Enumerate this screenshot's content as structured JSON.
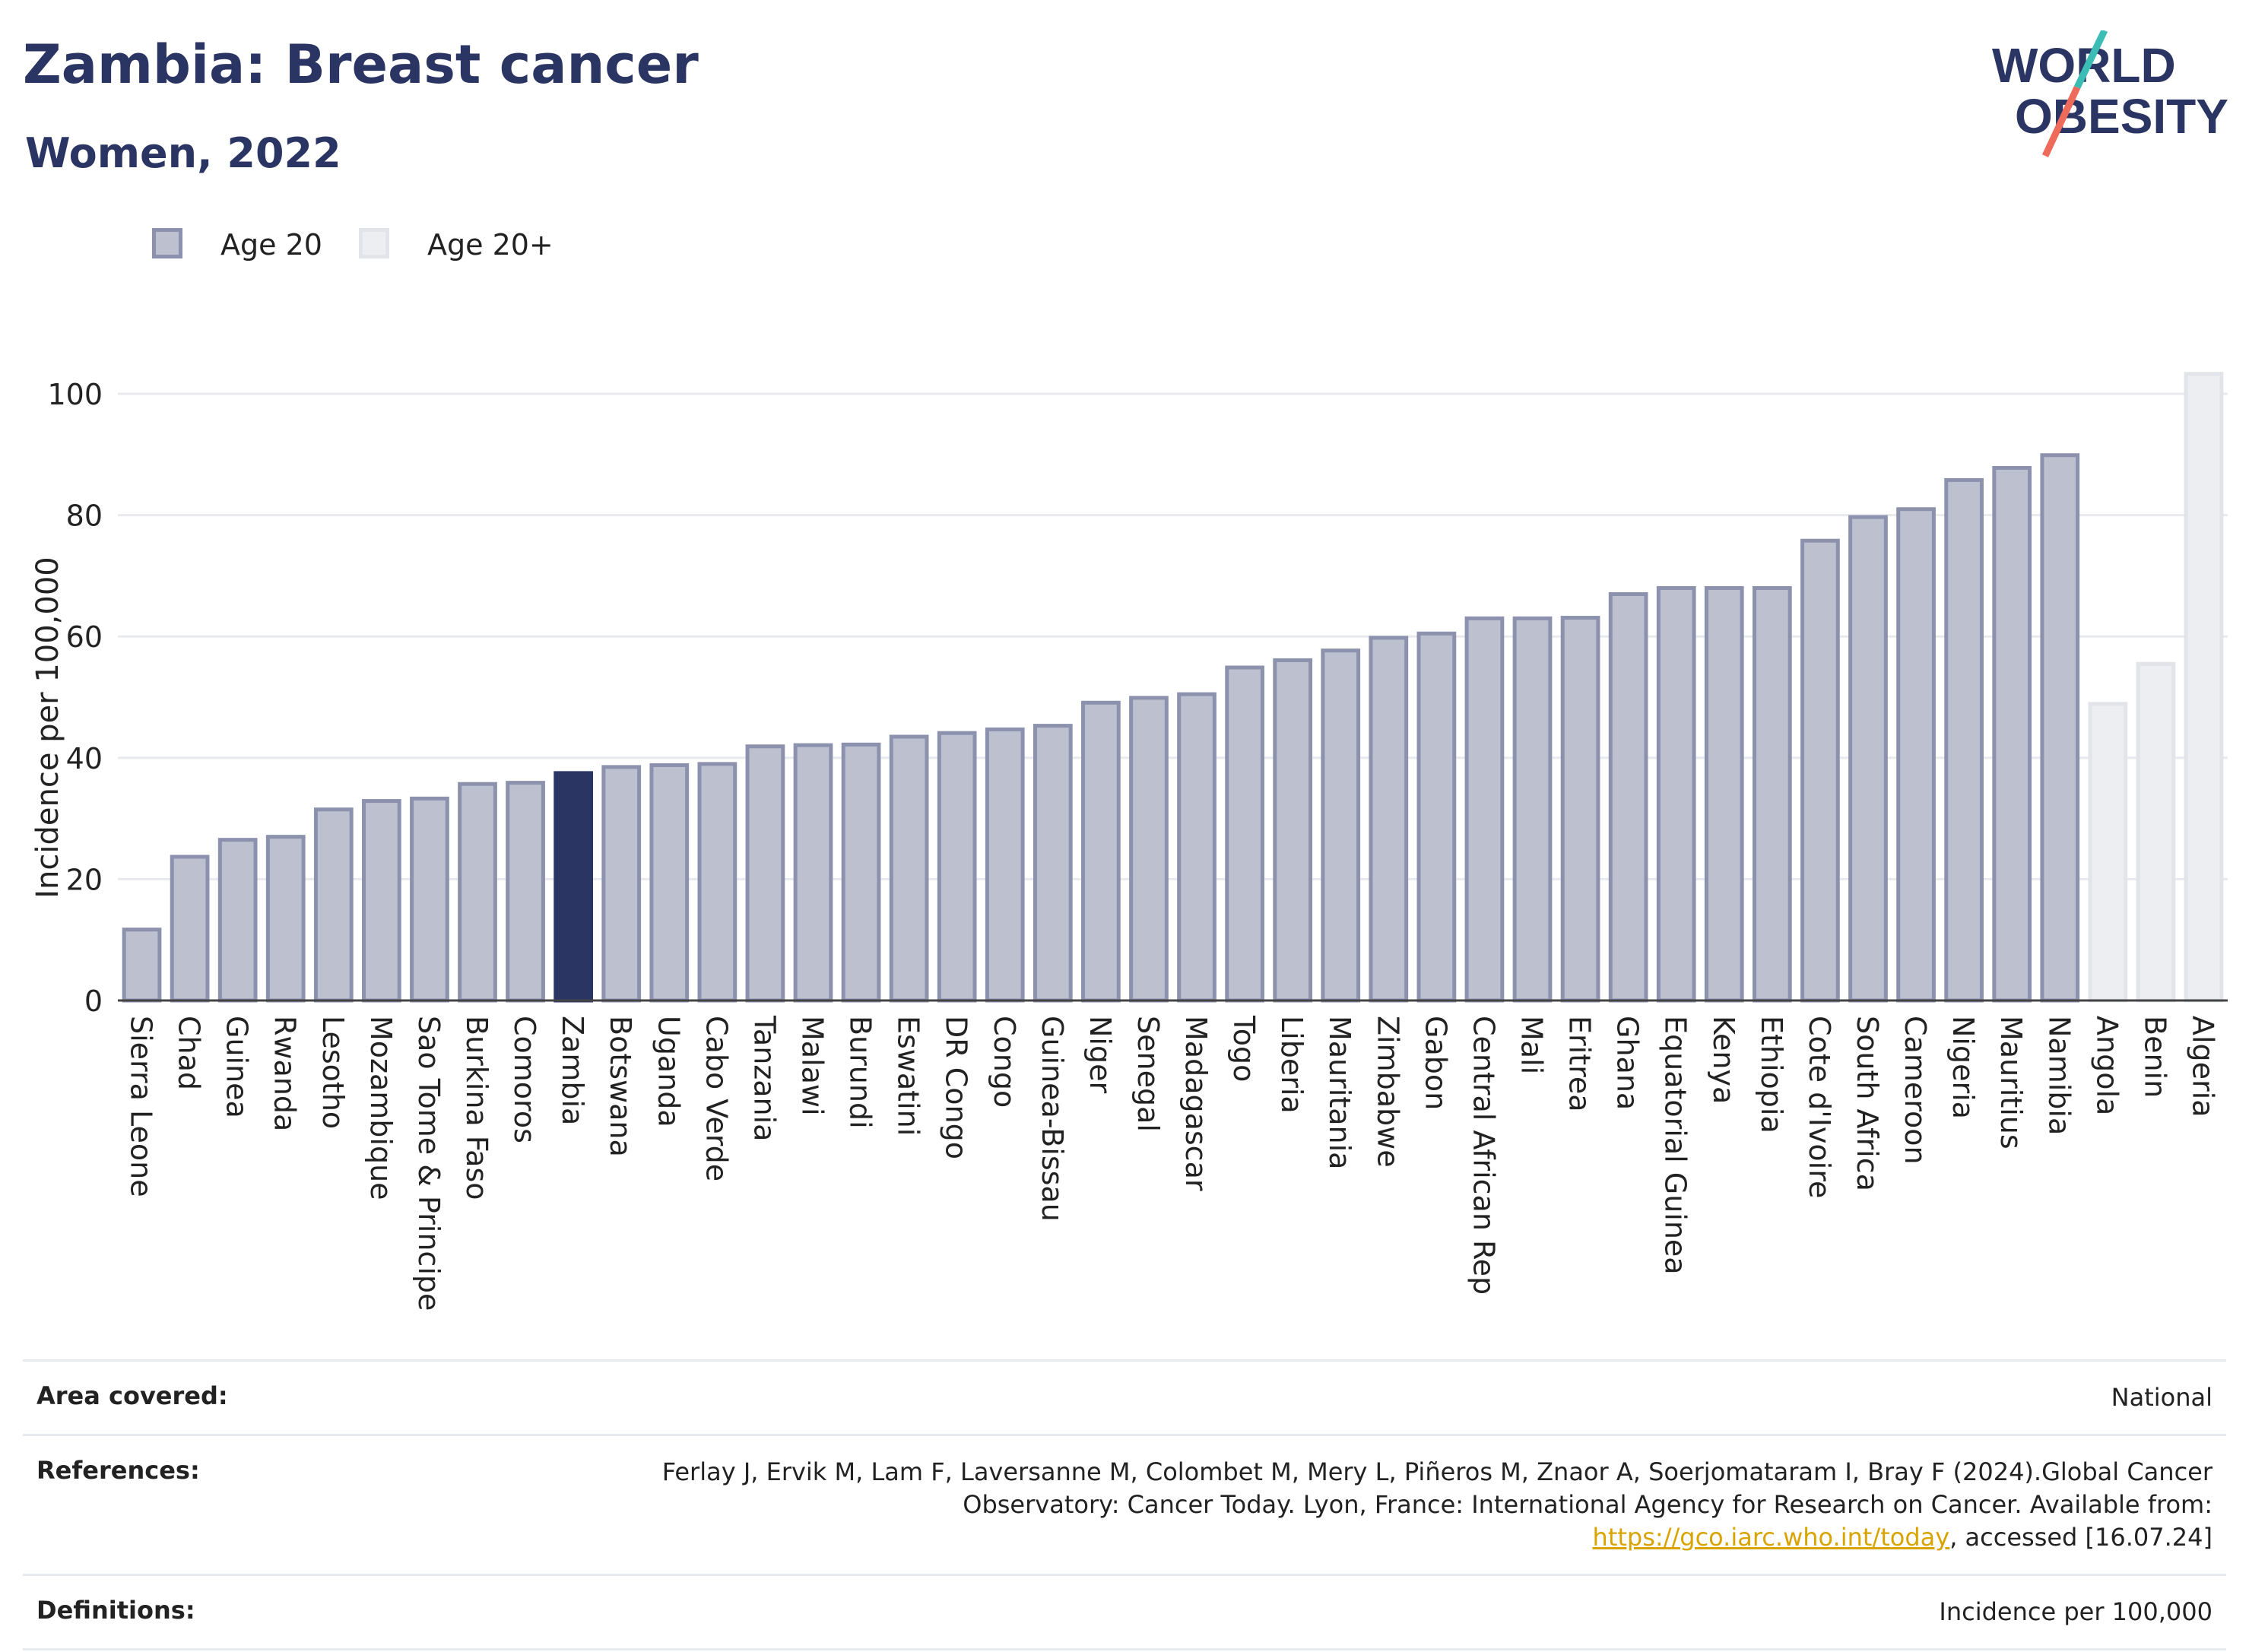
{
  "header": {
    "title": "Zambia: Breast cancer",
    "subtitle": "Women, 2022"
  },
  "logo": {
    "line1": "WORLD",
    "line2": "OBESITY",
    "colors": {
      "text": "#2b3563",
      "slash_teal": "#3bbcb4",
      "slash_coral": "#ee6a5a"
    }
  },
  "legend": [
    {
      "label": "Age 20",
      "fill": "#bcc0cf",
      "stroke": "#8c92ad"
    },
    {
      "label": "Age 20+",
      "fill": "#eceef2",
      "stroke": "#e2e4ea"
    }
  ],
  "colors": {
    "bar_fill": "#bcc0cf",
    "bar_stroke": "#8c92ad",
    "highlight": "#2b3563",
    "faded_fill": "#eceef2",
    "faded_stroke": "#e2e4ea",
    "link": "#d9a400"
  },
  "chart_data": {
    "type": "bar",
    "ylabel": "Incidence per 100,000",
    "xlabel": "",
    "ylim": [
      0,
      105
    ],
    "yticks": [
      0,
      20,
      40,
      60,
      80,
      100
    ],
    "grid": true,
    "legend_position": "top-left",
    "highlight": "Zambia",
    "categories": [
      "Sierra Leone",
      "Chad",
      "Guinea",
      "Rwanda",
      "Lesotho",
      "Mozambique",
      "Sao Tome & Principe",
      "Burkina Faso",
      "Comoros",
      "Zambia",
      "Botswana",
      "Uganda",
      "Cabo Verde",
      "Tanzania",
      "Malawi",
      "Burundi",
      "Eswatini",
      "DR Congo",
      "Congo",
      "Guinea-Bissau",
      "Niger",
      "Senegal",
      "Madagascar",
      "Togo",
      "Liberia",
      "Mauritania",
      "Zimbabwe",
      "Gabon",
      "Central African Rep",
      "Mali",
      "Eritrea",
      "Ghana",
      "Equatorial Guinea",
      "Kenya",
      "Ethiopia",
      "Cote d'Ivoire",
      "South Africa",
      "Cameroon",
      "Nigeria",
      "Mauritius",
      "Namibia",
      "Angola",
      "Benin",
      "Algeria"
    ],
    "series": [
      {
        "name": "Age 20",
        "values": [
          12.0,
          24.0,
          26.8,
          27.3,
          31.8,
          33.2,
          33.6,
          36.0,
          36.2,
          37.8,
          38.8,
          39.1,
          39.3,
          42.2,
          42.4,
          42.5,
          43.8,
          44.4,
          45.0,
          45.6,
          49.4,
          50.2,
          50.8,
          55.2,
          56.4,
          58.0,
          60.1,
          60.8,
          63.3,
          63.3,
          63.4,
          67.3,
          68.3,
          68.3,
          68.3,
          76.1,
          80.0,
          81.3,
          86.1,
          88.1,
          90.2,
          null,
          null,
          null
        ]
      },
      {
        "name": "Age 20+",
        "values": [
          null,
          null,
          null,
          null,
          null,
          null,
          null,
          null,
          null,
          null,
          null,
          null,
          null,
          null,
          null,
          null,
          null,
          null,
          null,
          null,
          null,
          null,
          null,
          null,
          null,
          null,
          null,
          null,
          null,
          null,
          null,
          null,
          null,
          null,
          null,
          null,
          null,
          null,
          null,
          null,
          null,
          49.2,
          55.8,
          103.6
        ]
      }
    ]
  },
  "footer": {
    "area": {
      "label": "Area covered:",
      "value": "National"
    },
    "references": {
      "label": "References:",
      "text_before": "Ferlay J, Ervik M, Lam F, Laversanne M, Colombet M, Mery L, Piñeros M, Znaor A, Soerjomataram I, Bray F (2024).Global Cancer Observatory: Cancer Today. Lyon, France: International Agency for Research on Cancer. Available from: ",
      "link": "https://gco.iarc.who.int/today",
      "text_after": ", accessed [16.07.24]"
    },
    "definitions": {
      "label": "Definitions:",
      "value": "Incidence per 100,000"
    }
  }
}
